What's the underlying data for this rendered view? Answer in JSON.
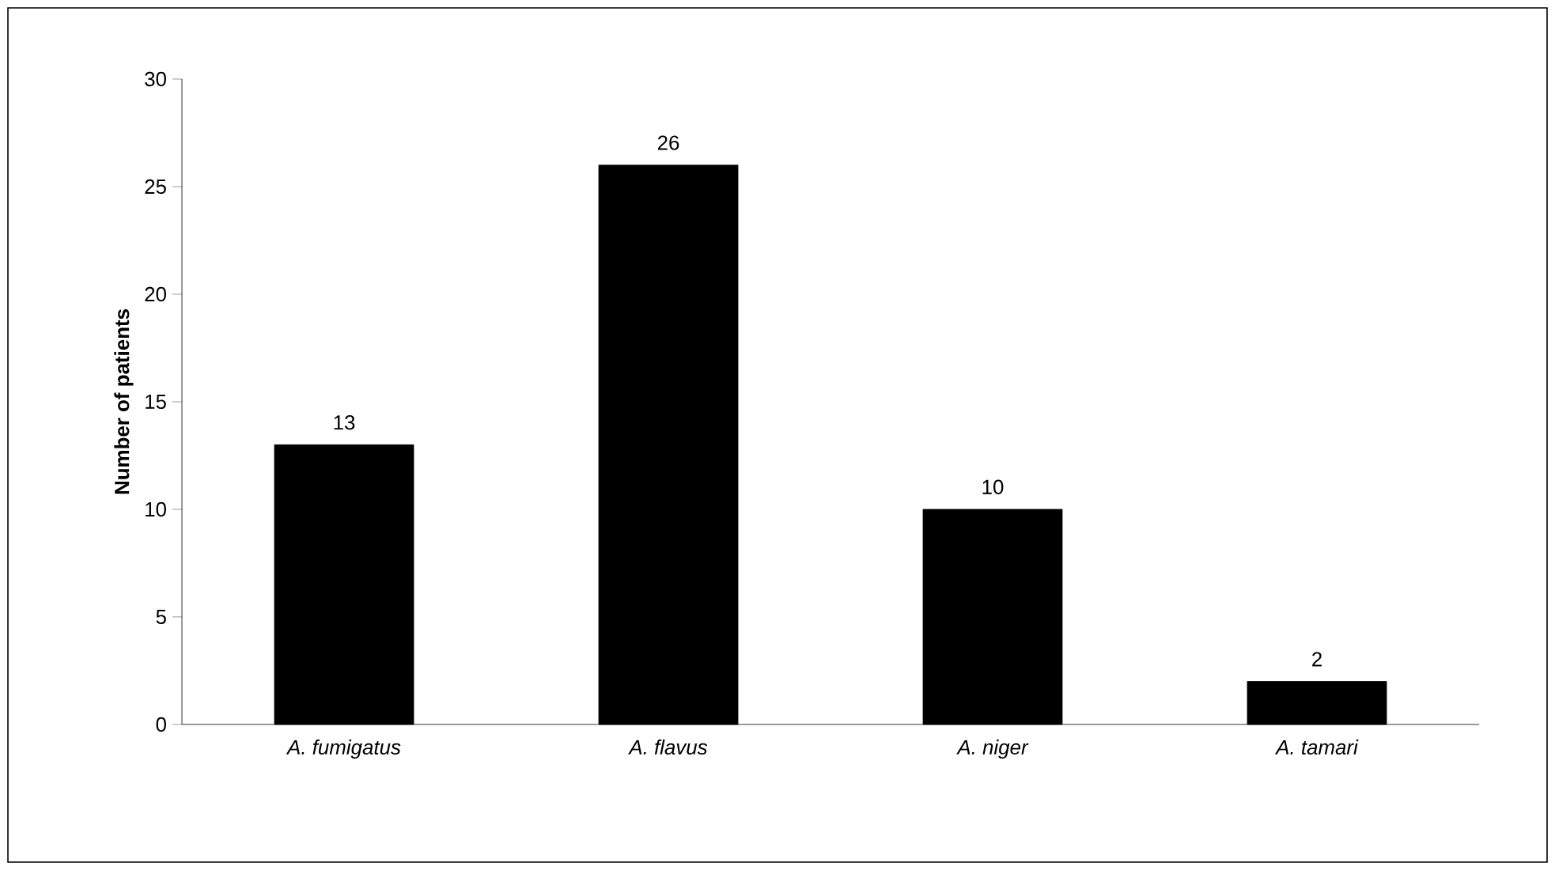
{
  "chart_data": {
    "type": "bar",
    "ylabel": "Number of patients",
    "categories": [
      "A. fumigatus",
      "A. flavus",
      "A. niger",
      "A. tamari"
    ],
    "values": [
      13,
      26,
      10,
      2
    ],
    "color": "#000000",
    "ylim": [
      0,
      30
    ],
    "yticks": [
      0,
      5,
      10,
      15,
      20,
      25,
      30
    ],
    "grid": false,
    "data_labels": true
  }
}
